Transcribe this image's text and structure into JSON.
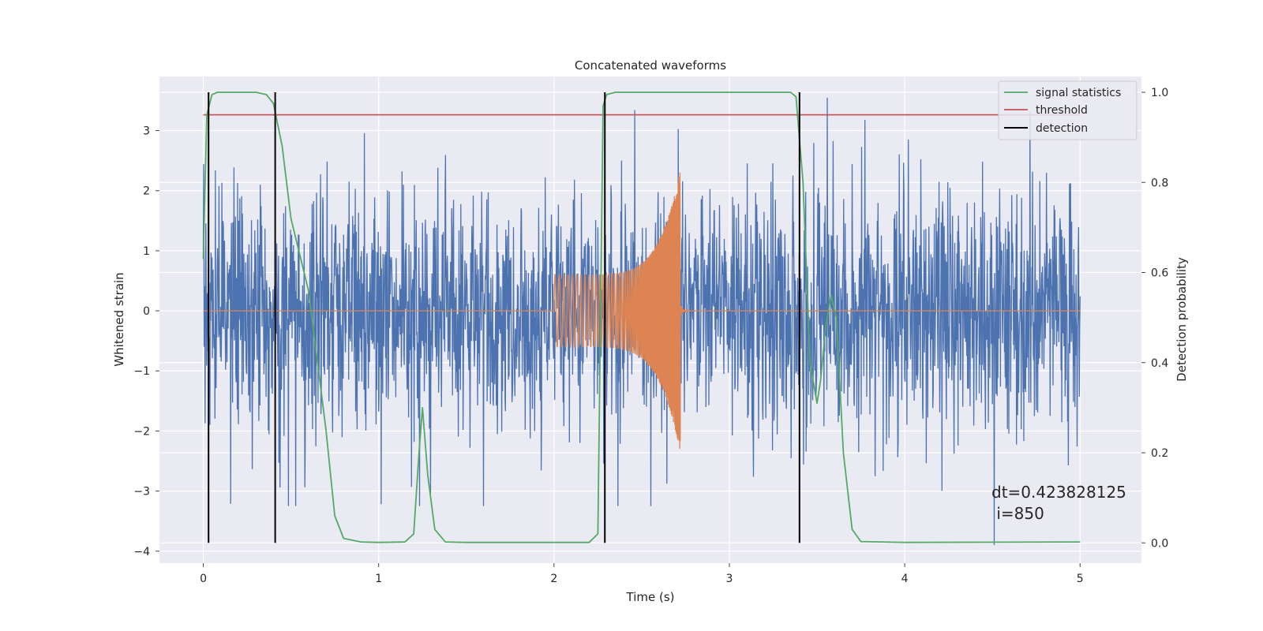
{
  "chart_data": {
    "type": "line",
    "title": "Concatenated waveforms",
    "xlabel": "Time (s)",
    "ylabel": "Whitened strain",
    "y2label": "Detection probability",
    "xlim": [
      -0.25,
      5.35
    ],
    "ylim": [
      -4.2,
      3.9
    ],
    "y2lim": [
      -0.045,
      1.035
    ],
    "xticks": [
      0,
      1,
      2,
      3,
      4,
      5
    ],
    "yticks": [
      -4,
      -3,
      -2,
      -1,
      0,
      1,
      2,
      3
    ],
    "y2ticks": [
      0.0,
      0.2,
      0.4,
      0.6,
      0.8,
      1.0
    ],
    "y2tick_labels": [
      "0.0",
      "0.2",
      "0.4",
      "0.6",
      "0.8",
      "1.0"
    ],
    "grid": true,
    "legend_position": "top-right",
    "colors": {
      "background": "#eaeaf2",
      "strain": "#4c72b0",
      "signal_waveform": "#dd8452",
      "signal_statistics": "#55a868",
      "threshold": "#c44e52",
      "detection": "#000000",
      "grid": "#ffffff"
    },
    "series": [
      {
        "name": "whitened strain (noise)",
        "axis": "left",
        "x_range": [
          0,
          5
        ],
        "typical_amplitude": 1.0,
        "peak_max": 3.55,
        "peak_min": -3.25,
        "outlier": {
          "x": 4.51,
          "y": -3.9
        }
      },
      {
        "name": "signal waveform",
        "axis": "left",
        "x_range": [
          2.0,
          2.72
        ],
        "envelope_start": 0.6,
        "envelope_peak": 2.35,
        "flat_elsewhere": 0
      },
      {
        "name": "signal statistics",
        "axis": "right",
        "x": [
          0.0,
          0.02,
          0.05,
          0.08,
          0.12,
          0.2,
          0.3,
          0.36,
          0.4,
          0.45,
          0.5,
          0.6,
          0.7,
          0.75,
          0.8,
          0.9,
          1.0,
          1.15,
          1.2,
          1.23,
          1.25,
          1.28,
          1.32,
          1.38,
          1.5,
          2.0,
          2.2,
          2.25,
          2.28,
          2.3,
          2.35,
          2.5,
          3.0,
          3.35,
          3.38,
          3.42,
          3.46,
          3.5,
          3.52,
          3.55,
          3.58,
          3.61,
          3.65,
          3.7,
          3.75,
          4.0,
          5.0
        ],
        "y": [
          0.63,
          0.95,
          0.995,
          1.0,
          1.0,
          1.0,
          1.0,
          0.995,
          0.975,
          0.88,
          0.72,
          0.56,
          0.25,
          0.06,
          0.01,
          0.002,
          0.001,
          0.002,
          0.02,
          0.2,
          0.3,
          0.15,
          0.03,
          0.002,
          0.001,
          0.001,
          0.001,
          0.02,
          0.97,
          0.995,
          1.0,
          1.0,
          1.0,
          1.0,
          0.99,
          0.8,
          0.4,
          0.31,
          0.36,
          0.48,
          0.55,
          0.5,
          0.2,
          0.03,
          0.003,
          0.001,
          0.002
        ]
      },
      {
        "name": "threshold",
        "axis": "right",
        "x": [
          0,
          5
        ],
        "y": [
          0.95,
          0.95
        ]
      },
      {
        "name": "detection",
        "axis": "right",
        "type": "vlines",
        "x": [
          0.03,
          0.41,
          2.29,
          3.4
        ],
        "y_range": [
          0.0,
          1.0
        ]
      }
    ],
    "legend": [
      "signal statistics",
      "threshold",
      "detection"
    ],
    "annotation": {
      "line1": "dt=0.423828125",
      "line2": " i=850"
    }
  }
}
